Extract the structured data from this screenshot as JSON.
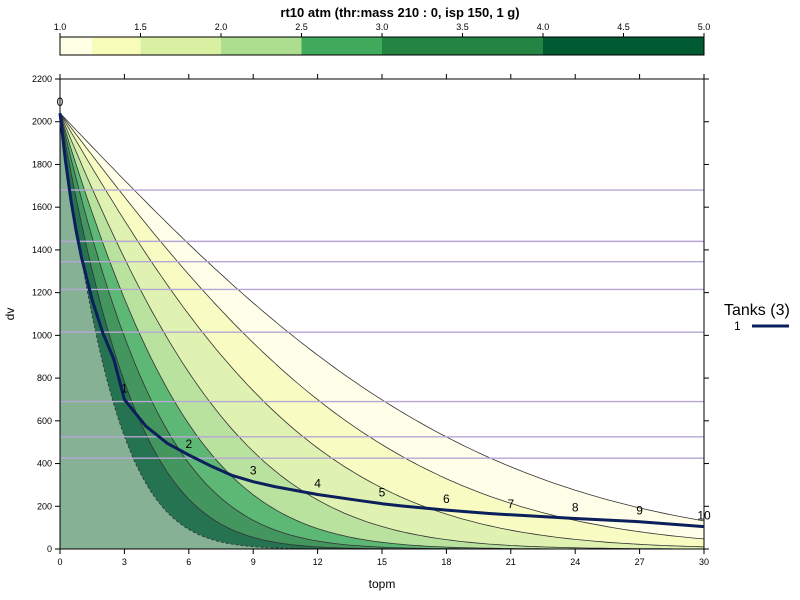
{
  "chart_data": {
    "type": "line",
    "title": "rt10 atm (thr:mass 210 : 0, isp 150, 1 g)",
    "xlabel": "topm",
    "ylabel": "dv",
    "xlim": [
      0,
      30
    ],
    "ylim": [
      0,
      2200
    ],
    "x_ticks": [
      0,
      3,
      6,
      9,
      12,
      15,
      18,
      21,
      24,
      27,
      30
    ],
    "y_ticks": [
      0,
      200,
      400,
      600,
      800,
      1000,
      1200,
      1400,
      1600,
      1800,
      2000,
      2200
    ],
    "colorbar": {
      "ticks": [
        "1.0",
        "1.5",
        "2.0",
        "2.5",
        "3.0",
        "3.5",
        "4.0",
        "4.5",
        "5.0"
      ],
      "levels": [
        1.0,
        1.2,
        1.5,
        2.0,
        2.5,
        3.0,
        4.0,
        5.0
      ],
      "colors": [
        "#ffffe5",
        "#f7fcb9",
        "#d9f0a3",
        "#addd8e",
        "#41ab5d",
        "#238443",
        "#005a32"
      ]
    },
    "contour_thresholds": [
      1.0,
      1.2,
      1.5,
      2.0,
      2.5,
      3.0,
      4.0,
      5.0
    ],
    "horizontal_lines": [
      1680,
      1440,
      1345,
      1215,
      1015,
      690,
      525,
      425
    ],
    "series": [
      {
        "name": "1",
        "color": "#0b1f5c",
        "x": [
          0,
          0.25,
          0.5,
          0.75,
          1,
          1.5,
          2,
          2.5,
          3,
          4,
          5,
          6,
          7,
          8,
          9,
          10,
          12,
          14,
          15,
          16,
          18,
          20,
          21,
          24,
          27,
          30
        ],
        "y": [
          2040,
          1820,
          1640,
          1490,
          1365,
          1165,
          1010,
          890,
          700,
          575,
          495,
          440,
          390,
          345,
          315,
          292,
          255,
          226,
          212,
          201,
          182,
          166,
          160,
          143,
          128,
          105
        ]
      }
    ],
    "markers": [
      {
        "label": "0",
        "x": 0,
        "y": 2040
      },
      {
        "label": "1",
        "x": 3,
        "y": 700
      },
      {
        "label": "2",
        "x": 6,
        "y": 440
      },
      {
        "label": "3",
        "x": 9,
        "y": 315
      },
      {
        "label": "4",
        "x": 12,
        "y": 255
      },
      {
        "label": "5",
        "x": 15,
        "y": 212
      },
      {
        "label": "6",
        "x": 18,
        "y": 182
      },
      {
        "label": "7",
        "x": 21,
        "y": 160
      },
      {
        "label": "8",
        "x": 24,
        "y": 143
      },
      {
        "label": "9",
        "x": 27,
        "y": 128
      },
      {
        "label": "10",
        "x": 30,
        "y": 105
      }
    ],
    "legend": {
      "title": "Tanks (3)",
      "entries": [
        {
          "label": "1",
          "color": "#0b1f5c"
        }
      ],
      "position": "right"
    }
  }
}
